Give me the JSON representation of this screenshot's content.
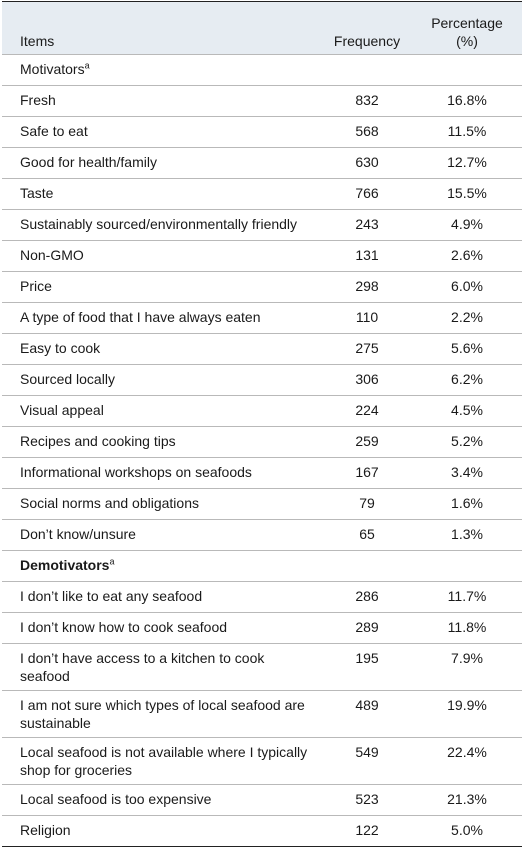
{
  "table": {
    "header": [
      "Items",
      "Frequency",
      "Percentage (%)"
    ],
    "sections": [
      {
        "title": "Motivators",
        "note": "a",
        "bold": false,
        "rows": [
          [
            "Fresh",
            832,
            "16.8%"
          ],
          [
            "Safe to eat",
            568,
            "11.5%"
          ],
          [
            "Good for health/family",
            630,
            "12.7%"
          ],
          [
            "Taste",
            766,
            "15.5%"
          ],
          [
            "Sustainably sourced/environmentally friendly",
            243,
            "4.9%"
          ],
          [
            "Non-GMO",
            131,
            "2.6%"
          ],
          [
            "Price",
            298,
            "6.0%"
          ],
          [
            "A type of food that I have always eaten",
            110,
            "2.2%"
          ],
          [
            "Easy to cook",
            275,
            "5.6%"
          ],
          [
            "Sourced locally",
            306,
            "6.2%"
          ],
          [
            "Visual appeal",
            224,
            "4.5%"
          ],
          [
            "Recipes and cooking tips",
            259,
            "5.2%"
          ],
          [
            "Informational workshops on seafoods",
            167,
            "3.4%"
          ],
          [
            "Social norms and obligations",
            79,
            "1.6%"
          ],
          [
            "Don’t know/unsure",
            65,
            "1.3%"
          ]
        ]
      },
      {
        "title": "Demotivators",
        "note": "a",
        "bold": true,
        "rows": [
          [
            "I don’t like to eat any seafood",
            286,
            "11.7%"
          ],
          [
            "I don’t know how to cook seafood",
            289,
            "11.8%"
          ],
          [
            "I don’t have access to a kitchen to cook seafood",
            195,
            "7.9%"
          ],
          [
            "I am not sure which types of local seafood are sustainable",
            489,
            "19.9%"
          ],
          [
            "Local seafood is not available where I typically shop for groceries",
            549,
            "22.4%"
          ],
          [
            "Local seafood is too expensive",
            523,
            "21.3%"
          ],
          [
            "Religion",
            122,
            "5.0%"
          ]
        ]
      }
    ]
  }
}
